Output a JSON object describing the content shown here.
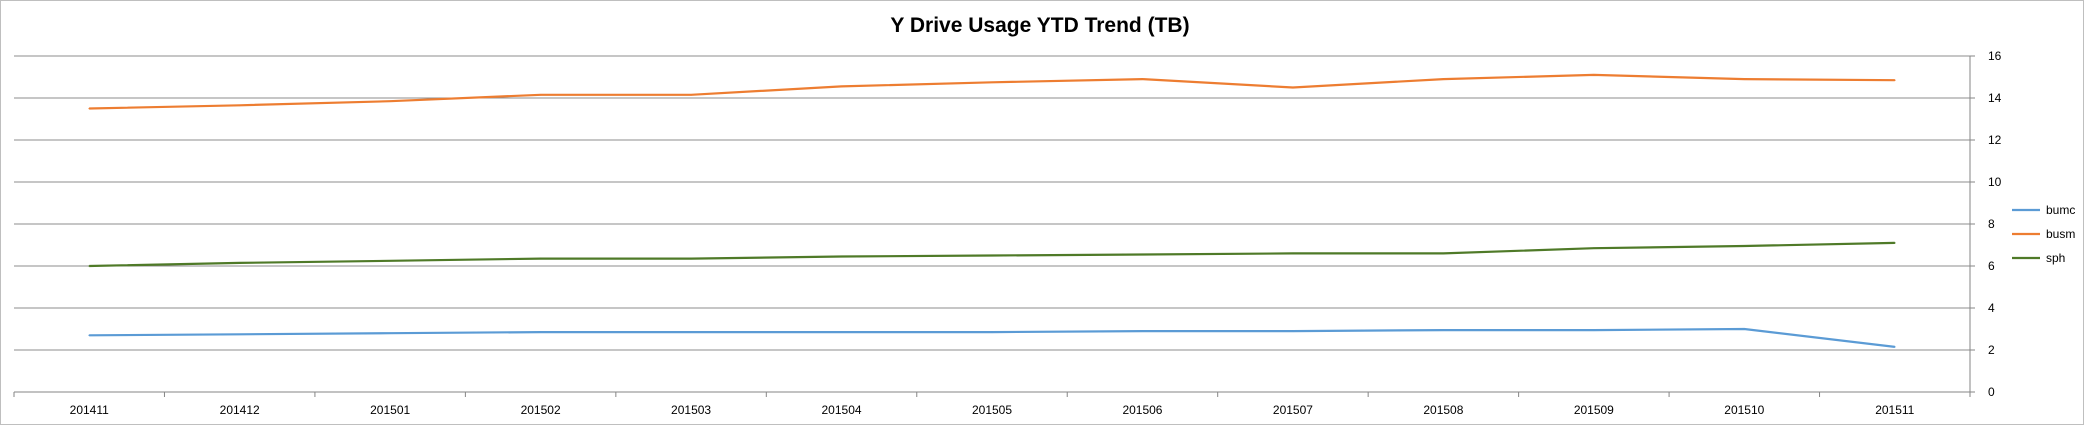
{
  "chart_data": {
    "type": "line",
    "title": "Y Drive Usage YTD Trend (TB)",
    "xlabel": "",
    "ylabel": "",
    "categories": [
      "201411",
      "201412",
      "201501",
      "201502",
      "201503",
      "201504",
      "201505",
      "201506",
      "201507",
      "201508",
      "201509",
      "201510",
      "201511"
    ],
    "ylim": [
      0,
      16
    ],
    "yticks": [
      "0",
      "2",
      "4",
      "6",
      "8",
      "10",
      "12",
      "14",
      "16"
    ],
    "y_axis_side": "right",
    "grid": true,
    "legend_position": "right",
    "series": [
      {
        "name": "bumc",
        "color": "#5b9bd5",
        "values": [
          2.7,
          2.75,
          2.8,
          2.85,
          2.85,
          2.85,
          2.85,
          2.9,
          2.9,
          2.95,
          2.95,
          3.0,
          2.15
        ]
      },
      {
        "name": "busm",
        "color": "#ed7d31",
        "values": [
          13.5,
          13.65,
          13.85,
          14.15,
          14.15,
          14.55,
          14.75,
          14.9,
          14.5,
          14.9,
          15.1,
          14.9,
          14.85
        ]
      },
      {
        "name": "sph",
        "color": "#4f7a28",
        "values": [
          6.0,
          6.15,
          6.25,
          6.35,
          6.35,
          6.45,
          6.5,
          6.55,
          6.6,
          6.6,
          6.85,
          6.95,
          7.1
        ]
      }
    ]
  }
}
